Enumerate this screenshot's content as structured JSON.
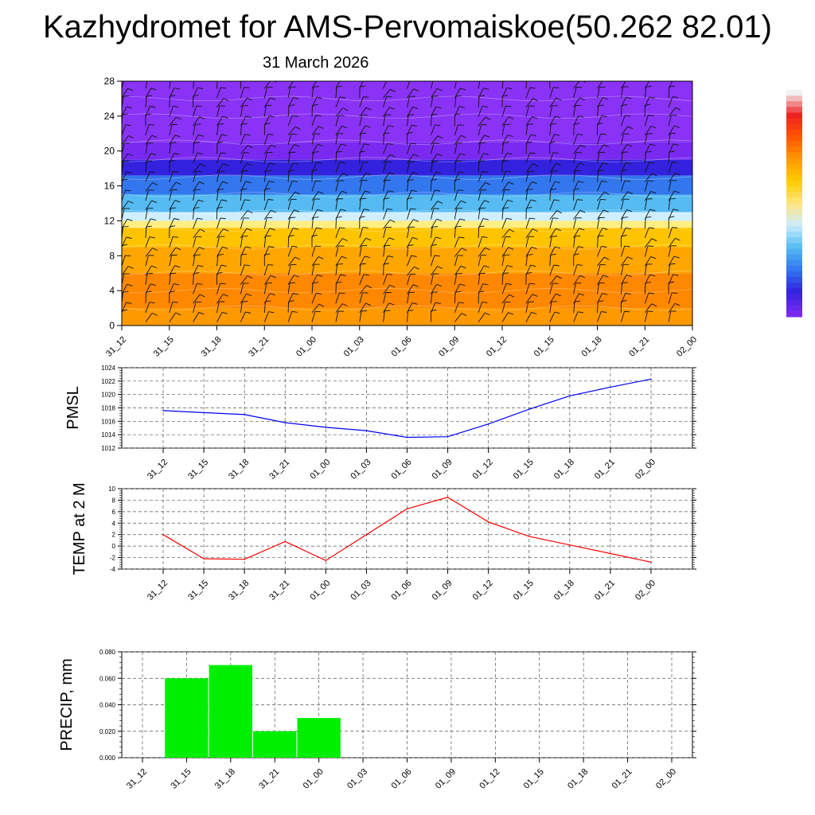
{
  "title": "Kazhydromet for AMS-Pervomaiskoe(50.262 82.01)",
  "subtitle": "31 March 2026",
  "colors": {
    "pmsl_line": "#0000ff",
    "temp_line": "#ff0000",
    "precip_bar": "#00ee00",
    "grid": "#555555"
  },
  "chart_data": [
    {
      "type": "heatmap",
      "name": "vertical-profile",
      "title": "",
      "xlabel": "",
      "ylabel": "",
      "categories": [
        "31_12",
        "31_15",
        "31_18",
        "31_21",
        "01_00",
        "01_03",
        "01_06",
        "01_09",
        "01_12",
        "01_15",
        "01_18",
        "01_21",
        "02_00"
      ],
      "yticks": [
        0,
        4,
        8,
        12,
        16,
        20,
        24,
        28
      ],
      "ylim": [
        0,
        28
      ],
      "layers": [
        {
          "from": 0,
          "to": 2,
          "color": "#ff9900"
        },
        {
          "from": 2,
          "to": 6,
          "color": "#ff8800"
        },
        {
          "from": 6,
          "to": 9,
          "color": "#ffa600"
        },
        {
          "from": 9,
          "to": 11.2,
          "color": "#ffc400"
        },
        {
          "from": 11.2,
          "to": 12,
          "color": "#ffee80"
        },
        {
          "from": 12,
          "to": 13,
          "color": "#cfefff"
        },
        {
          "from": 13,
          "to": 15,
          "color": "#55bbf2"
        },
        {
          "from": 15,
          "to": 17.2,
          "color": "#3377ee"
        },
        {
          "from": 17.2,
          "to": 19,
          "color": "#3322dd"
        },
        {
          "from": 19,
          "to": 21,
          "color": "#7a2af0"
        },
        {
          "from": 21,
          "to": 28,
          "color": "#8a32f5"
        }
      ],
      "colorbar": [
        "#f2f2f2",
        "#ee2222",
        "#ff5500",
        "#ff9900",
        "#ffcc00",
        "#ffe680",
        "#cceeff",
        "#55bbf2",
        "#3377ee",
        "#3322dd",
        "#7a2af0"
      ]
    },
    {
      "type": "line",
      "name": "pmsl",
      "ylabel": "PMSL",
      "categories": [
        "31_12",
        "31_15",
        "31_18",
        "31_21",
        "01_00",
        "01_03",
        "01_06",
        "01_09",
        "01_12",
        "01_15",
        "01_18",
        "01_21",
        "02_00"
      ],
      "values": [
        1017.6,
        1017.3,
        1017.0,
        1015.8,
        1015.1,
        1014.6,
        1013.6,
        1013.7,
        1015.6,
        1017.8,
        1019.8,
        1021.1,
        1022.3
      ],
      "ylim": [
        1012,
        1024
      ],
      "yticks": [
        "1012",
        "1014",
        "1016",
        "1018",
        "1020",
        "1022",
        "1024"
      ]
    },
    {
      "type": "line",
      "name": "temp-2m",
      "ylabel": "TEMP at 2 M",
      "categories": [
        "31_12",
        "31_15",
        "31_18",
        "31_21",
        "01_00",
        "01_03",
        "01_06",
        "01_09",
        "01_12",
        "01_15",
        "01_18",
        "01_21",
        "02_00"
      ],
      "values": [
        2.0,
        -2.2,
        -2.3,
        0.8,
        -2.5,
        2.0,
        6.5,
        8.5,
        4.2,
        1.7,
        0.2,
        -1.3,
        -2.8
      ],
      "ylim": [
        -4,
        10
      ],
      "yticks": [
        "-4",
        "-2",
        "0",
        "2",
        "4",
        "6",
        "8",
        "10"
      ]
    },
    {
      "type": "bar",
      "name": "precip",
      "ylabel": "PRECIP, mm",
      "categories": [
        "31_12",
        "31_15",
        "31_18",
        "31_21",
        "01_00",
        "01_03",
        "01_06",
        "01_09",
        "01_12",
        "01_15",
        "01_18",
        "01_21",
        "02_00"
      ],
      "values": [
        0,
        0.06,
        0.07,
        0.02,
        0.03,
        0,
        0,
        0,
        0,
        0,
        0,
        0,
        0
      ],
      "ylim": [
        0,
        0.08
      ],
      "yticks": [
        "0.000",
        "0.020",
        "0.040",
        "0.060",
        "0.080"
      ]
    }
  ]
}
